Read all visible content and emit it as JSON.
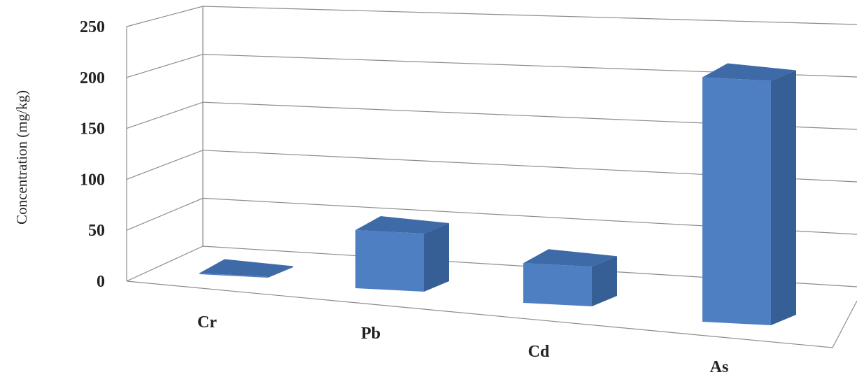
{
  "chart_data": {
    "type": "bar",
    "style": "3d-clustered-column",
    "title": "",
    "xlabel": "",
    "ylabel": "Concentration (mg/kg)",
    "categories": [
      "Cr",
      "Pb",
      "Cd",
      "As"
    ],
    "values": [
      1,
      57,
      39,
      240
    ],
    "ylim": [
      0,
      250
    ],
    "yticks": [
      "0",
      "50",
      "100",
      "150",
      "200",
      "250"
    ],
    "grid": true,
    "legend": "none",
    "colors": {
      "bar_front": "#4e7fc3",
      "bar_top": "#3f6aa8",
      "bar_side": "#365f96",
      "grid": "#8c8c8c"
    }
  }
}
